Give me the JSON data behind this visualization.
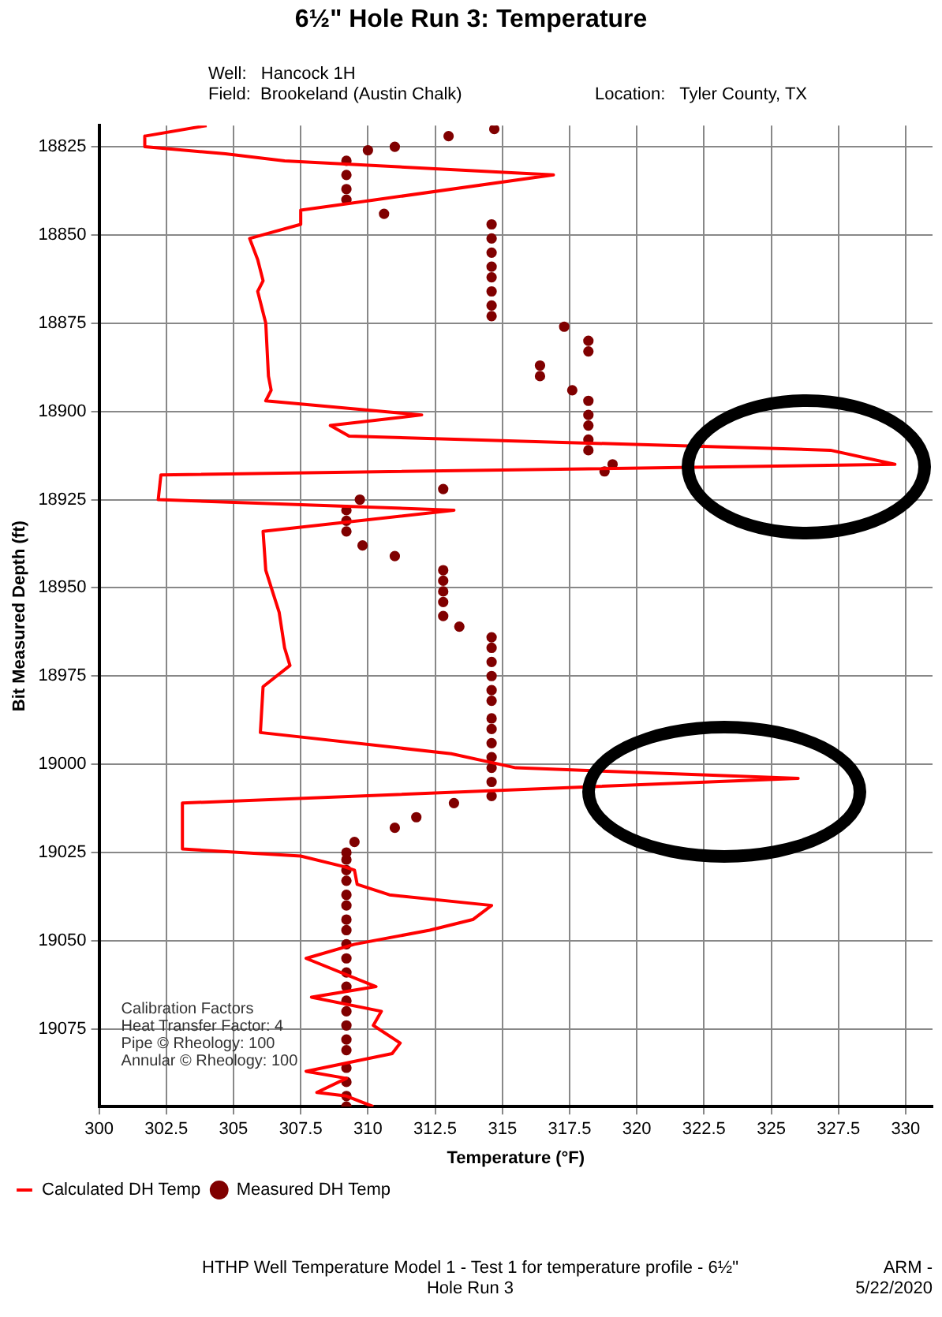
{
  "chart_data": {
    "type": "line",
    "title": "6½\" Hole Run 3: Temperature",
    "xlabel": "Temperature (°F)",
    "ylabel": "Bit Measured Depth (ft)",
    "annotations": [
      "Well:   Hancock 1H",
      "Field:  Brookeland (Austin Chalk)",
      "Location:   Tyler County, TX",
      "Calibration Factors",
      "Heat Transfer Factor: 4",
      "Pipe © Rheology: 100",
      "Annular © Rheology: 100",
      "HTHP Well Temperature Model 1 - Test 1 for temperature profile - 6½\" Hole Run 3",
      "ARM - 5/22/2020"
    ],
    "xlim": [
      300,
      331
    ],
    "xticks": [
      300,
      302.5,
      305,
      307.5,
      310,
      312.5,
      315,
      317.5,
      320,
      322.5,
      325,
      327.5,
      330
    ],
    "ylim": [
      19097,
      18819
    ],
    "yticks": [
      18825,
      18850,
      18875,
      18900,
      18925,
      18950,
      18975,
      19000,
      19025,
      19050,
      19075
    ],
    "grid": true,
    "legend": "bottom",
    "series": [
      {
        "name": "Calculated DH Temp",
        "type": "line",
        "color": "#ff0000",
        "marker": "none",
        "line_style": "solid",
        "x": [
          304.0,
          301.7,
          301.7,
          304.7,
          306.9,
          316.9,
          307.5,
          307.5,
          305.6,
          305.9,
          306.1,
          305.9,
          306.2,
          306.3,
          306.4,
          306.2,
          312.0,
          308.6,
          309.3,
          327.2,
          329.6,
          302.3,
          302.2,
          313.2,
          306.1,
          306.2,
          306.7,
          306.9,
          307.1,
          306.1,
          306.0,
          313.1,
          315.5,
          326.0,
          303.1,
          303.1,
          307.5,
          309.1,
          309.5,
          309.6,
          310.8,
          314.6,
          313.9,
          312.3,
          309.5,
          307.7,
          310.3,
          307.9,
          310.5,
          310.2,
          311.2,
          310.9,
          307.7,
          309.2,
          308.1,
          309.2,
          310.2
        ],
        "values": [
          18819,
          18822,
          18825,
          18827,
          18829,
          18833,
          18843,
          18847,
          18851,
          18857,
          18863,
          18866,
          18875,
          18890,
          18894,
          18897,
          18901,
          18904,
          18907,
          18911,
          18915,
          18918,
          18925,
          18928,
          18934,
          18945,
          18957,
          18967,
          18972,
          18978,
          18991,
          18997,
          19001,
          19004,
          19011,
          19024,
          19026,
          19029,
          19030,
          19034,
          19037,
          19040,
          19044,
          19047,
          19051,
          19055,
          19063,
          19066,
          19070,
          19074,
          19079,
          19082,
          19087,
          19089,
          19093,
          19094,
          19097
        ]
      },
      {
        "name": "Measured DH Temp",
        "type": "scatter",
        "color": "#800000",
        "marker": "circle",
        "x": [
          314.7,
          313.0,
          311.0,
          310.0,
          309.2,
          309.2,
          309.2,
          309.2,
          310.6,
          314.6,
          314.6,
          314.6,
          314.6,
          314.6,
          314.6,
          314.6,
          314.6,
          317.3,
          318.2,
          318.2,
          316.4,
          316.4,
          317.6,
          318.2,
          318.2,
          318.2,
          318.2,
          318.2,
          319.1,
          318.8,
          312.8,
          309.7,
          309.2,
          309.2,
          309.2,
          309.8,
          311.0,
          312.8,
          312.8,
          312.8,
          312.8,
          312.8,
          313.4,
          314.6,
          314.6,
          314.6,
          314.6,
          314.6,
          314.6,
          314.6,
          314.6,
          314.6,
          314.6,
          314.6,
          314.6,
          314.6,
          313.2,
          311.8,
          311.0,
          309.5,
          309.2,
          309.2,
          309.2,
          309.2,
          309.2,
          309.2,
          309.2,
          309.2,
          309.2,
          309.2,
          309.2,
          309.2,
          309.2,
          309.2,
          309.2,
          309.2,
          309.2,
          309.2,
          309.2,
          309.2,
          309.2
        ],
        "values": [
          18820,
          18822,
          18825,
          18826,
          18829,
          18833,
          18837,
          18840,
          18844,
          18847,
          18851,
          18855,
          18859,
          18862,
          18866,
          18870,
          18873,
          18876,
          18880,
          18883,
          18887,
          18890,
          18894,
          18897,
          18901,
          18904,
          18908,
          18911,
          18915,
          18917,
          18922,
          18925,
          18928,
          18931,
          18934,
          18938,
          18941,
          18945,
          18948,
          18951,
          18954,
          18958,
          18961,
          18964,
          18967,
          18971,
          18975,
          18979,
          18982,
          18987,
          18990,
          18994,
          18998,
          19001,
          19005,
          19009,
          19011,
          19015,
          19018,
          19022,
          19025,
          19027,
          19030,
          19033,
          19037,
          19040,
          19044,
          19047,
          19051,
          19055,
          19059,
          19063,
          19067,
          19070,
          19074,
          19078,
          19081,
          19086,
          19090,
          19094,
          19097
        ]
      }
    ]
  }
}
